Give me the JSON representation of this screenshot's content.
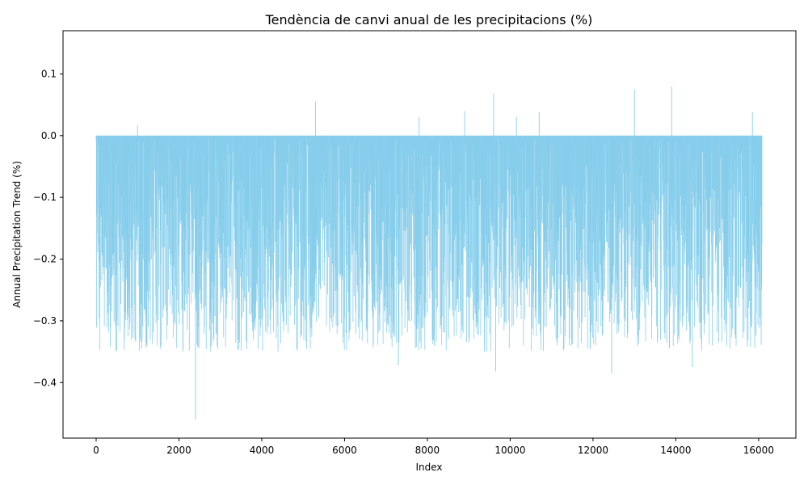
{
  "chart_data": {
    "type": "bar",
    "title": "Tendència de canvi anual de les precipitacions (%)",
    "xlabel": "Index",
    "ylabel": "Annual Precipitation Trend (%)",
    "xlim": [
      -800,
      16900
    ],
    "ylim": [
      -0.49,
      0.17
    ],
    "xticks": [
      0,
      2000,
      4000,
      6000,
      8000,
      10000,
      12000,
      14000,
      16000
    ],
    "xtick_labels": [
      "0",
      "2000",
      "4000",
      "6000",
      "8000",
      "10000",
      "12000",
      "14000",
      "16000"
    ],
    "yticks": [
      -0.4,
      -0.3,
      -0.2,
      -0.1,
      0.0,
      0.1
    ],
    "ytick_labels": [
      "−0.4",
      "−0.3",
      "−0.2",
      "−0.1",
      "0.0",
      "0.1"
    ],
    "bar_color": "#87CEEB",
    "grid": false,
    "legend": "none",
    "x_range": [
      0,
      16080
    ],
    "n_points": 16081,
    "notable_points": [
      {
        "x": 2400,
        "y": -0.46
      },
      {
        "x": 12450,
        "y": -0.385
      },
      {
        "x": 9650,
        "y": -0.382
      },
      {
        "x": 14400,
        "y": -0.375
      },
      {
        "x": 7300,
        "y": -0.372
      },
      {
        "x": 5300,
        "y": 0.055
      },
      {
        "x": 7800,
        "y": 0.03
      },
      {
        "x": 8900,
        "y": 0.04
      },
      {
        "x": 9600,
        "y": 0.068
      },
      {
        "x": 10150,
        "y": 0.03
      },
      {
        "x": 10700,
        "y": 0.038
      },
      {
        "x": 13000,
        "y": 0.075
      },
      {
        "x": 13900,
        "y": 0.08
      },
      {
        "x": 15850,
        "y": 0.038
      },
      {
        "x": 1000,
        "y": 0.017
      }
    ],
    "typical_range": [
      -0.35,
      0.0
    ]
  }
}
